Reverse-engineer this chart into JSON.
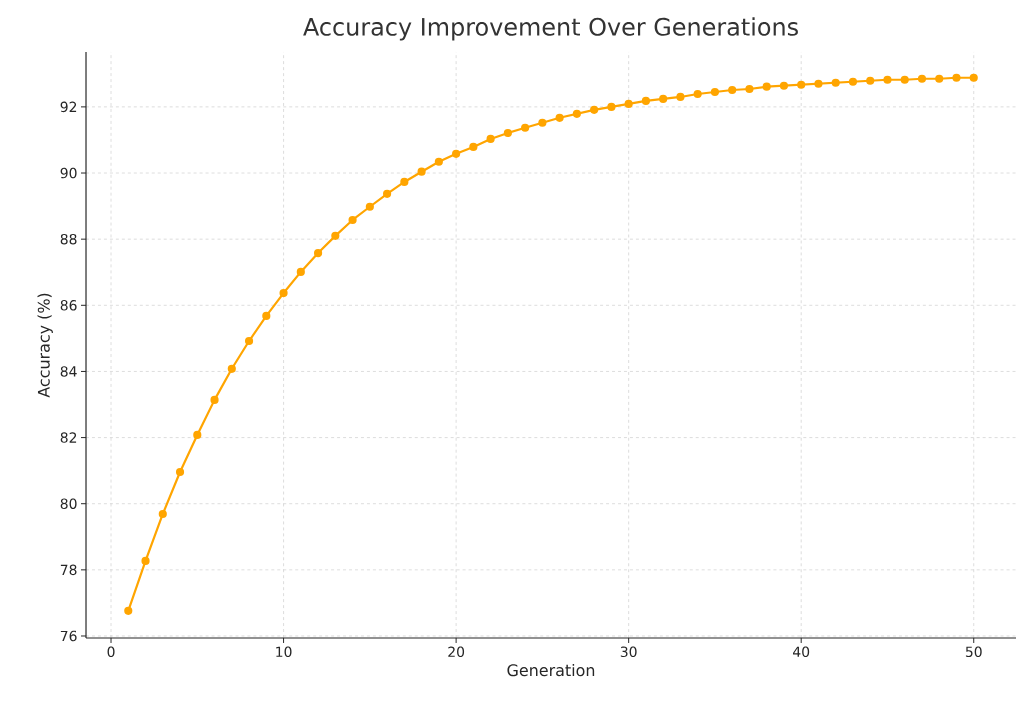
{
  "chart_data": {
    "type": "line",
    "title": "Accuracy Improvement Over Generations",
    "xlabel": "Generation",
    "ylabel": "Accuracy (%)",
    "x": [
      1,
      2,
      3,
      4,
      5,
      6,
      7,
      8,
      9,
      10,
      11,
      12,
      13,
      14,
      15,
      16,
      17,
      18,
      19,
      20,
      21,
      22,
      23,
      24,
      25,
      26,
      27,
      28,
      29,
      30,
      31,
      32,
      33,
      34,
      35,
      36,
      37,
      38,
      39,
      40,
      41,
      42,
      43,
      44,
      45,
      46,
      47,
      48,
      49,
      50
    ],
    "series": [
      {
        "color": "#ffa500",
        "values": [
          76.76,
          78.27,
          79.69,
          80.96,
          82.08,
          83.14,
          84.08,
          84.92,
          85.68,
          86.37,
          87.01,
          87.58,
          88.1,
          88.58,
          88.98,
          89.37,
          89.73,
          90.04,
          90.34,
          90.58,
          90.79,
          91.03,
          91.21,
          91.37,
          91.52,
          91.67,
          91.79,
          91.91,
          92.0,
          92.09,
          92.18,
          92.24,
          92.3,
          92.39,
          92.45,
          92.51,
          92.54,
          92.61,
          92.64,
          92.67,
          92.7,
          92.73,
          92.76,
          92.79,
          92.82,
          92.82,
          92.85,
          92.85,
          92.88,
          92.88
        ]
      }
    ],
    "xlim": [
      -1.45,
      52.45
    ],
    "ylim": [
      75.94,
      93.66
    ],
    "xticks": [
      0,
      10,
      20,
      30,
      40,
      50
    ],
    "yticks": [
      76,
      78,
      80,
      82,
      84,
      86,
      88,
      90,
      92
    ],
    "grid": true,
    "marker": "circle",
    "line_style": "solid"
  }
}
